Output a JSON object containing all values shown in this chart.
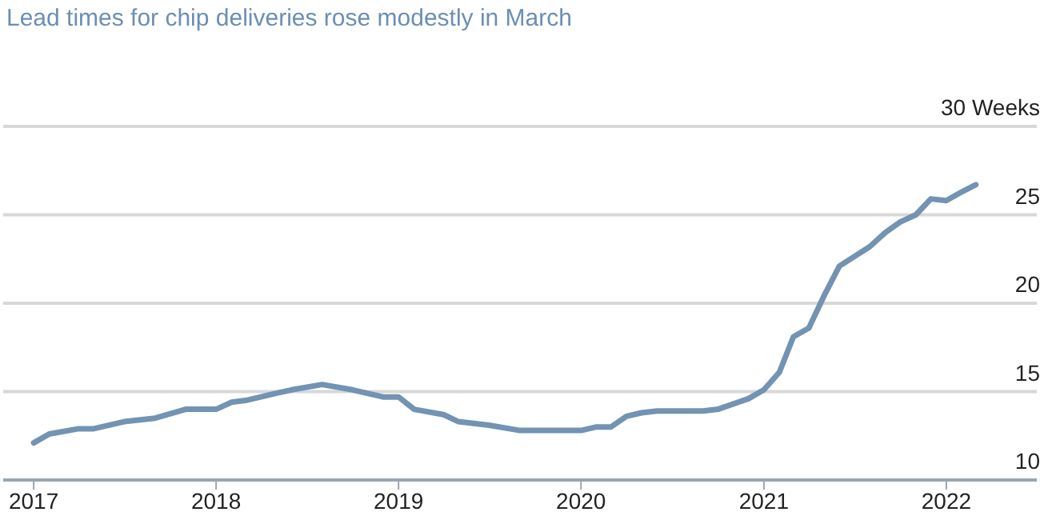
{
  "chart_data": {
    "type": "line",
    "title": "Lead times for chip deliveries rose modestly in March",
    "x": [
      "2017-01",
      "2017-02",
      "2017-04",
      "2017-05",
      "2017-07",
      "2017-09",
      "2017-11",
      "2018-01",
      "2018-02",
      "2018-03",
      "2018-05",
      "2018-06",
      "2018-08",
      "2018-10",
      "2018-12",
      "2019-01",
      "2019-02",
      "2019-04",
      "2019-05",
      "2019-07",
      "2019-09",
      "2019-10",
      "2020-01",
      "2020-02",
      "2020-03",
      "2020-04",
      "2020-05",
      "2020-06",
      "2020-08",
      "2020-09",
      "2020-10",
      "2020-12",
      "2021-01",
      "2021-02",
      "2021-03",
      "2021-04",
      "2021-05",
      "2021-06",
      "2021-08",
      "2021-09",
      "2021-10",
      "2021-11",
      "2021-12",
      "2022-01",
      "2022-02",
      "2022-03"
    ],
    "series": [
      {
        "color": "#7393b3",
        "values": [
          12.1,
          12.6,
          12.9,
          12.9,
          13.3,
          13.5,
          14.0,
          14.0,
          14.4,
          14.5,
          14.9,
          15.1,
          15.4,
          15.1,
          14.7,
          14.7,
          14.0,
          13.7,
          13.3,
          13.1,
          12.8,
          12.8,
          12.8,
          13.0,
          13.0,
          13.6,
          13.8,
          13.9,
          13.9,
          13.9,
          14.0,
          14.6,
          15.1,
          16.1,
          18.1,
          18.6,
          20.4,
          22.1,
          23.2,
          24.0,
          24.6,
          25.0,
          25.9,
          25.8,
          26.3,
          26.7
        ]
      }
    ],
    "xlim": [
      "2016-11",
      "2022-07"
    ],
    "xticks": [
      "2017",
      "2018",
      "2019",
      "2020",
      "2021",
      "2022"
    ],
    "ylim": [
      10,
      30
    ],
    "yticks": [
      10,
      15,
      20,
      25,
      {
        "value": 30,
        "label": "30 Weeks"
      }
    ],
    "grid": "y",
    "marker": "none",
    "line_style": "solid"
  }
}
